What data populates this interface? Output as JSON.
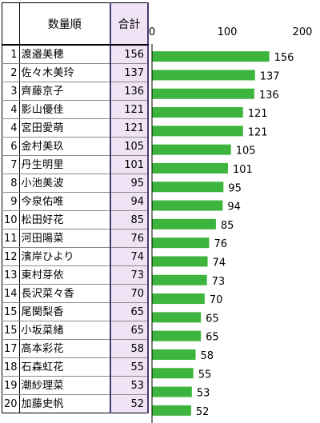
{
  "table": {
    "header_rank": "",
    "header_name": "数量順",
    "header_total": "合計",
    "rows": [
      {
        "rank": "1",
        "name": "渡邉美穂",
        "total": "156"
      },
      {
        "rank": "2",
        "name": "佐々木美玲",
        "total": "137"
      },
      {
        "rank": "3",
        "name": "齊藤京子",
        "total": "136"
      },
      {
        "rank": "4",
        "name": "影山優佳",
        "total": "121"
      },
      {
        "rank": "4",
        "name": "宮田愛萌",
        "total": "121"
      },
      {
        "rank": "6",
        "name": "金村美玖",
        "total": "105"
      },
      {
        "rank": "7",
        "name": "丹生明里",
        "total": "101"
      },
      {
        "rank": "8",
        "name": "小池美波",
        "total": "95"
      },
      {
        "rank": "9",
        "name": "今泉佑唯",
        "total": "94"
      },
      {
        "rank": "10",
        "name": "松田好花",
        "total": "85"
      },
      {
        "rank": "11",
        "name": "河田陽菜",
        "total": "76"
      },
      {
        "rank": "12",
        "name": "濱岸ひより",
        "total": "74"
      },
      {
        "rank": "13",
        "name": "東村芽依",
        "total": "73"
      },
      {
        "rank": "14",
        "name": "長沢菜々香",
        "total": "70"
      },
      {
        "rank": "15",
        "name": "尾関梨香",
        "total": "65"
      },
      {
        "rank": "15",
        "name": "小坂菜緒",
        "total": "65"
      },
      {
        "rank": "17",
        "name": "高本彩花",
        "total": "58"
      },
      {
        "rank": "18",
        "name": "石森虹花",
        "total": "55"
      },
      {
        "rank": "19",
        "name": "潮紗理菜",
        "total": "53"
      },
      {
        "rank": "20",
        "name": "加藤史帆",
        "total": "52"
      }
    ]
  },
  "chart_data": {
    "type": "bar",
    "orientation": "horizontal",
    "categories": [
      "渡邉美穂",
      "佐々木美玲",
      "齊藤京子",
      "影山優佳",
      "宮田愛萌",
      "金村美玖",
      "丹生明里",
      "小池美波",
      "今泉佑唯",
      "松田好花",
      "河田陽菜",
      "濱岸ひより",
      "東村芽依",
      "長沢菜々香",
      "尾関梨香",
      "小坂菜緒",
      "高本彩花",
      "石森虹花",
      "潮紗理菜",
      "加藤史帆"
    ],
    "values": [
      156,
      137,
      136,
      121,
      121,
      105,
      101,
      95,
      94,
      85,
      76,
      74,
      73,
      70,
      65,
      65,
      58,
      55,
      53,
      52
    ],
    "xlim": [
      0,
      200
    ],
    "xticks": [
      0,
      100,
      200
    ],
    "xtick_labels": [
      "0",
      "100",
      "200"
    ],
    "data_labels": true,
    "legend": "none",
    "grid": false,
    "bar_color": "#3db43d"
  }
}
